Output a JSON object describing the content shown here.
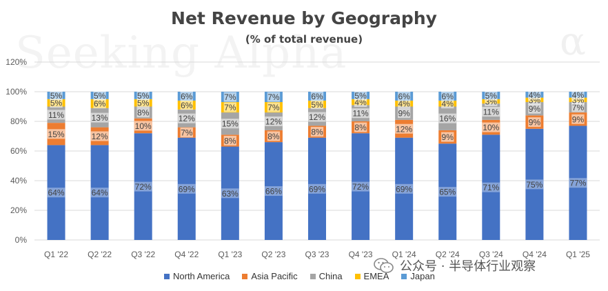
{
  "chart_data": {
    "type": "bar",
    "stacked": true,
    "title": "Net Revenue by Geography",
    "subtitle": "(% of total revenue)",
    "categories": [
      "Q1 '22",
      "Q2 '22",
      "Q3 '22",
      "Q4 '22",
      "Q1 '23",
      "Q2 '23",
      "Q3 '23",
      "Q4 '23",
      "Q1 '24",
      "Q2 '24",
      "Q3 '24",
      "Q4 '24",
      "Q1 '25"
    ],
    "yticks": [
      "0%",
      "20%",
      "40%",
      "60%",
      "80%",
      "100%",
      "120%"
    ],
    "ylim": [
      0,
      120
    ],
    "grid": true,
    "legend_position": "bottom",
    "series": [
      {
        "name": "North America",
        "color": "#4472c4",
        "values": [
          64,
          64,
          72,
          69,
          63,
          66,
          69,
          72,
          69,
          65,
          71,
          75,
          77
        ],
        "labels": [
          "64%",
          "64%",
          "72%",
          "69%",
          "63%",
          "66%",
          "69%",
          "72%",
          "69%",
          "65%",
          "71%",
          "75%",
          "77%"
        ]
      },
      {
        "name": "Asia Pacific",
        "color": "#ed7d31",
        "values": [
          15,
          12,
          10,
          7,
          8,
          8,
          8,
          8,
          12,
          9,
          10,
          9,
          9
        ],
        "labels": [
          "15%",
          "12%",
          "10%",
          "7%",
          "8%",
          "8%",
          "8%",
          "8%",
          "12%",
          "9%",
          "10%",
          "9%",
          "9%"
        ]
      },
      {
        "name": "China",
        "color": "#a5a5a5",
        "values": [
          11,
          13,
          8,
          12,
          15,
          12,
          12,
          11,
          9,
          16,
          11,
          9,
          7
        ],
        "labels": [
          "11%",
          "13%",
          "8%",
          "12%",
          "15%",
          "12%",
          "12%",
          "11%",
          "9%",
          "16%",
          "11%",
          "9%",
          "7%"
        ]
      },
      {
        "name": "EMEA",
        "color": "#ffc000",
        "values": [
          5,
          6,
          5,
          6,
          7,
          7,
          5,
          4,
          4,
          4,
          3,
          3,
          3
        ],
        "labels": [
          "5%",
          "6%",
          "5%",
          "6%",
          "7%",
          "7%",
          "5%",
          "4%",
          "4%",
          "4%",
          "3%",
          "3%",
          "3%"
        ]
      },
      {
        "name": "Japan",
        "color": "#5b9bd5",
        "values": [
          5,
          5,
          5,
          6,
          7,
          7,
          6,
          5,
          6,
          6,
          5,
          4,
          4
        ],
        "labels": [
          "5%",
          "5%",
          "5%",
          "6%",
          "7%",
          "7%",
          "6%",
          "5%",
          "6%",
          "6%",
          "5%",
          "4%",
          "4%"
        ]
      }
    ]
  },
  "watermark": {
    "text": "Seeking Alpha",
    "symbol": "α"
  },
  "source_badge": {
    "text": "公众号 · 半导体行业观察"
  }
}
